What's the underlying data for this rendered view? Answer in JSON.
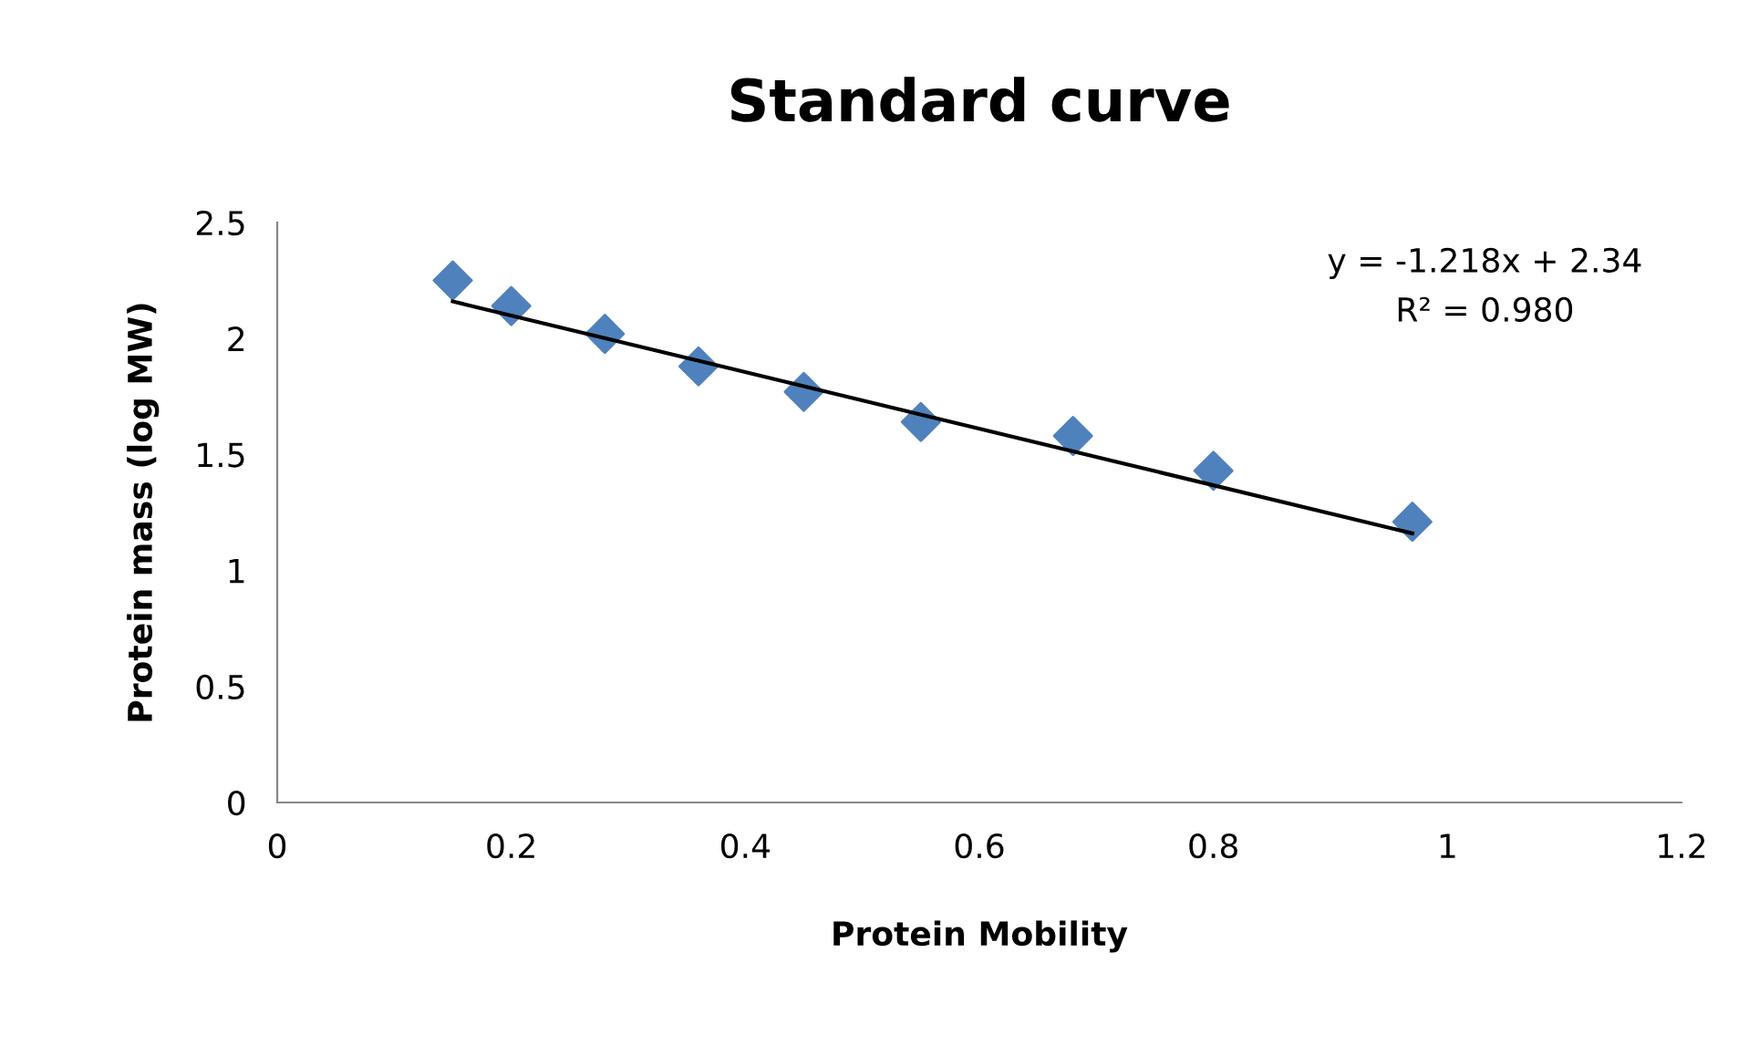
{
  "chart_data": {
    "type": "scatter",
    "title": "Standard curve",
    "xlabel": "Protein Mobility",
    "ylabel": "Protein mass (log MW)",
    "x": [
      0.15,
      0.2,
      0.28,
      0.36,
      0.45,
      0.55,
      0.68,
      0.8,
      0.97
    ],
    "series": [
      {
        "color": "#4f81bd",
        "marker": "diamond",
        "values": [
          2.25,
          2.14,
          2.02,
          1.88,
          1.77,
          1.64,
          1.58,
          1.43,
          1.21
        ]
      },
      {
        "type": "line",
        "color": "#000000",
        "marker": "none",
        "x": [
          0.15,
          0.97
        ],
        "values": [
          2.16,
          1.16
        ]
      }
    ],
    "annotations": [
      "y = -1.218x + 2.34",
      "R² = 0.980"
    ],
    "xlim": [
      0,
      1.2
    ],
    "xticks": [
      0,
      0.2,
      0.4,
      0.6,
      0.8,
      1,
      1.2
    ],
    "ylim": [
      0,
      2.5
    ],
    "yticks": [
      0,
      0.5,
      1,
      1.5,
      2,
      2.5
    ],
    "grid": false,
    "legend": false
  }
}
